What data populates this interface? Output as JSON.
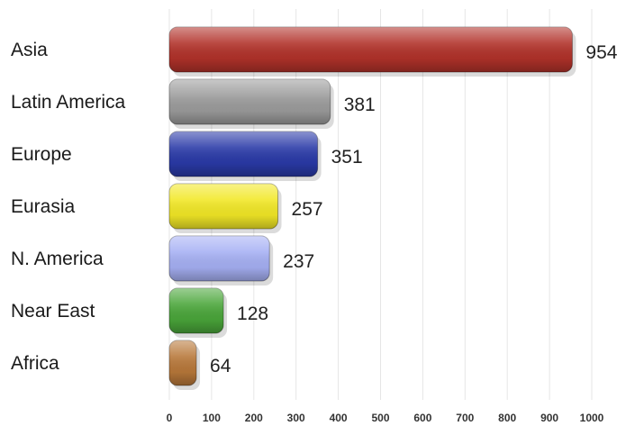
{
  "chart_data": {
    "type": "bar",
    "orientation": "horizontal",
    "categories": [
      "Asia",
      "Latin America",
      "Europe",
      "Eurasia",
      "N. America",
      "Near East",
      "Africa"
    ],
    "values": [
      954,
      381,
      351,
      257,
      237,
      128,
      64
    ],
    "data_labels": [
      "954",
      "381",
      "351",
      "257",
      "237",
      "128",
      "64"
    ],
    "colors": [
      "#b2322a",
      "#9c9c9c",
      "#2a3aa8",
      "#f2e826",
      "#a6b0f4",
      "#4aa63a",
      "#b8783a"
    ],
    "xlim": [
      0,
      1000
    ],
    "x_ticks": [
      "0",
      "100",
      "200",
      "300",
      "400",
      "500",
      "600",
      "700",
      "800",
      "900",
      "1000"
    ],
    "grid": true,
    "legend": "none"
  }
}
